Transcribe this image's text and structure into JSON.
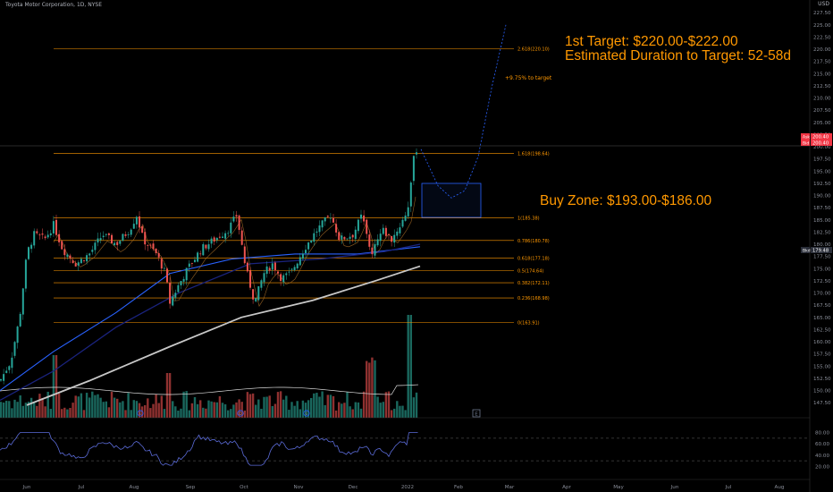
{
  "header": {
    "title": "Toyota Motor Corporation, 1D, NYSE",
    "currency": "USD"
  },
  "annotations": {
    "target_line1": "1st Target: $220.00-$222.00",
    "target_line2": "Estimated Duration to Target: 52-58d",
    "buy_zone": "Buy Zone: $193.00-$186.00",
    "pct_to_target": "+9.75% to target"
  },
  "colors": {
    "background": "#000000",
    "up": "#26a69a",
    "down": "#ef5350",
    "fib": "#ff9800",
    "ma_fast": "#2962ff",
    "ma_mid": "#1a237e",
    "ma_slow": "#c8c8c8",
    "buy_zone_border": "#2962ff",
    "rsi_line": "#5b6bd8",
    "price_badge": "#f23645",
    "last_badge": "#2a2e39"
  },
  "price_axis": {
    "ticks": [
      "227.50",
      "225.00",
      "222.50",
      "220.00",
      "217.50",
      "215.00",
      "212.50",
      "210.00",
      "207.50",
      "205.00",
      "202.50",
      "200.00",
      "197.50",
      "195.00",
      "192.50",
      "190.00",
      "187.50",
      "185.00",
      "182.50",
      "180.00",
      "177.50",
      "175.00",
      "172.50",
      "170.00",
      "167.50",
      "165.00",
      "162.50",
      "160.00",
      "157.50",
      "155.00",
      "152.50",
      "150.00",
      "147.50"
    ],
    "ask_label": "Ask",
    "ask_value": "200.40",
    "bid_label": "Bid",
    "bid_value": "200.40",
    "last_label": "Bkd",
    "last_value": "179.48"
  },
  "rsi_axis": {
    "ticks": [
      "80.00",
      "60.00",
      "40.00",
      "20.00"
    ]
  },
  "time_axis": [
    "Jun",
    "Jul",
    "Aug",
    "Sep",
    "Oct",
    "Nov",
    "Dec",
    "2022",
    "Feb",
    "Mar",
    "Apr",
    "May",
    "Jun",
    "Jul",
    "Aug"
  ],
  "fib_levels": [
    {
      "label": "2.618(220.10)",
      "price": 220.1
    },
    {
      "label": "1.618(198.64)",
      "price": 198.64
    },
    {
      "label": "1(185.38)",
      "price": 185.38
    },
    {
      "label": "0.786(180.78)",
      "price": 180.78
    },
    {
      "label": "0.618(177.18)",
      "price": 177.18
    },
    {
      "label": "0.5(174.64)",
      "price": 174.64
    },
    {
      "label": "0.382(172.11)",
      "price": 172.11
    },
    {
      "label": "0.236(168.98)",
      "price": 168.98
    },
    {
      "label": "0(163.91)",
      "price": 163.91
    }
  ],
  "buy_zone_range": [
    186.0,
    193.0
  ],
  "target_range": [
    220.0,
    222.0
  ],
  "chart_data": {
    "type": "candlestick",
    "symbol": "Toyota Motor Corporation, 1D, NYSE",
    "ylim": [
      146.0,
      229.0
    ],
    "price_at_ask": 200.4,
    "moving_average_keypoints": {
      "fast": [
        [
          0,
          150
        ],
        [
          60,
          158
        ],
        [
          130,
          166
        ],
        [
          190,
          174
        ],
        [
          260,
          177
        ],
        [
          330,
          178
        ],
        [
          400,
          178
        ],
        [
          470,
          179.5
        ]
      ],
      "mid": [
        [
          0,
          148
        ],
        [
          60,
          154
        ],
        [
          130,
          163
        ],
        [
          200,
          170
        ],
        [
          280,
          176
        ],
        [
          360,
          177
        ],
        [
          430,
          178.5
        ],
        [
          470,
          180
        ]
      ],
      "slow": [
        [
          30,
          147
        ],
        [
          100,
          152
        ],
        [
          190,
          159
        ],
        [
          270,
          165
        ],
        [
          350,
          168.5
        ],
        [
          420,
          172.5
        ],
        [
          470,
          175.5
        ]
      ]
    },
    "projection": [
      [
        471,
        199.5
      ],
      [
        490,
        192
      ],
      [
        505,
        189.5
      ],
      [
        520,
        191
      ],
      [
        535,
        198
      ],
      [
        550,
        212
      ],
      [
        566,
        225
      ]
    ]
  }
}
